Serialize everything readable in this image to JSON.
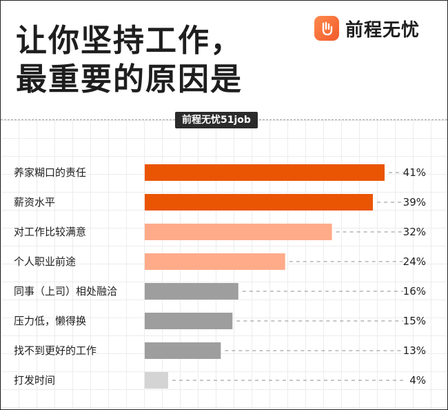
{
  "header": {
    "title": "让你坚持工作，\n最重要的原因是",
    "brand_name": "前程无忧",
    "source_tag": "前程无忧51job"
  },
  "colors": {
    "top": "#ea5504",
    "mid": "#ffab8a",
    "low": "#9e9e9e",
    "min": "#d4d4d4",
    "brand": "#f25a2c"
  },
  "chart_data": {
    "type": "bar",
    "orientation": "horizontal",
    "categories": [
      "养家糊口的责任",
      "薪资水平",
      "对工作比较满意",
      "个人职业前途",
      "同事（上司）相处融洽",
      "压力低，懒得换",
      "找不到更好的工作",
      "打发时间"
    ],
    "values": [
      41,
      39,
      32,
      24,
      16,
      15,
      13,
      4
    ],
    "value_labels": [
      "41%",
      "39%",
      "32%",
      "24%",
      "16%",
      "15%",
      "13%",
      "4%"
    ],
    "color_groups": [
      "top",
      "top",
      "mid",
      "mid",
      "low",
      "low",
      "low",
      "min"
    ],
    "unit": "%",
    "xlim": [
      0,
      41
    ]
  }
}
